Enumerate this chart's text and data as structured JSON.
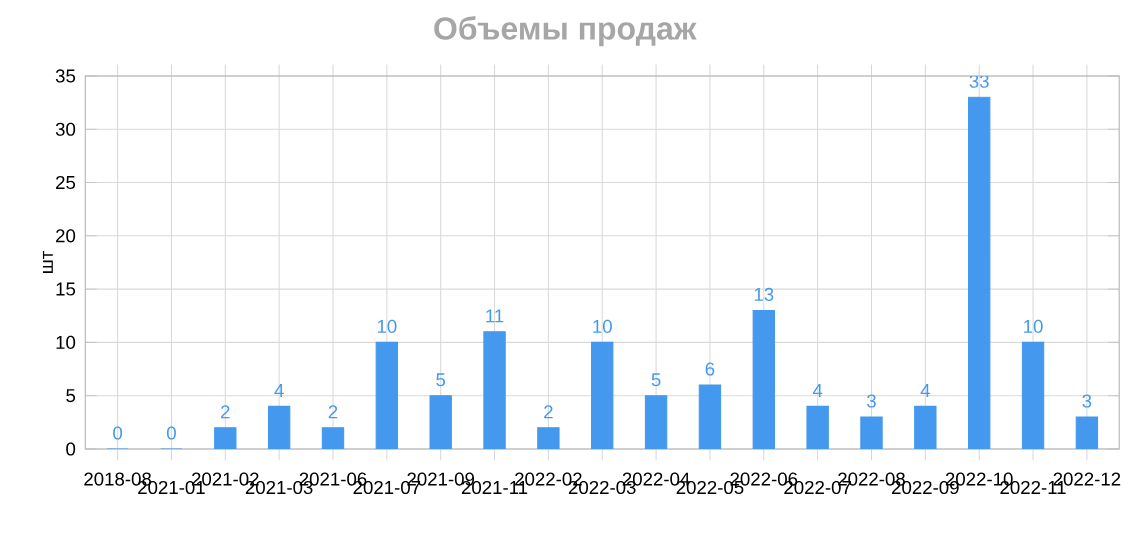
{
  "chart_data": {
    "type": "bar",
    "title": "Объемы продаж",
    "ylabel": "шт",
    "categories": [
      "2018-08",
      "2021-01",
      "2021-02",
      "2021-03",
      "2021-06",
      "2021-07",
      "2021-09",
      "2021-11",
      "2022-02",
      "2022-03",
      "2022-04",
      "2022-05",
      "2022-06",
      "2022-07",
      "2022-08",
      "2022-09",
      "2022-10",
      "2022-11",
      "2022-12"
    ],
    "values": [
      0,
      0,
      2,
      4,
      2,
      10,
      5,
      11,
      2,
      10,
      5,
      6,
      13,
      4,
      3,
      4,
      33,
      10,
      3
    ],
    "color": "#4499ee",
    "ylim": [
      0,
      35
    ],
    "yticks": [
      0,
      5,
      10,
      15,
      20,
      25,
      30,
      35
    ],
    "grid": true,
    "data_labels": true
  }
}
